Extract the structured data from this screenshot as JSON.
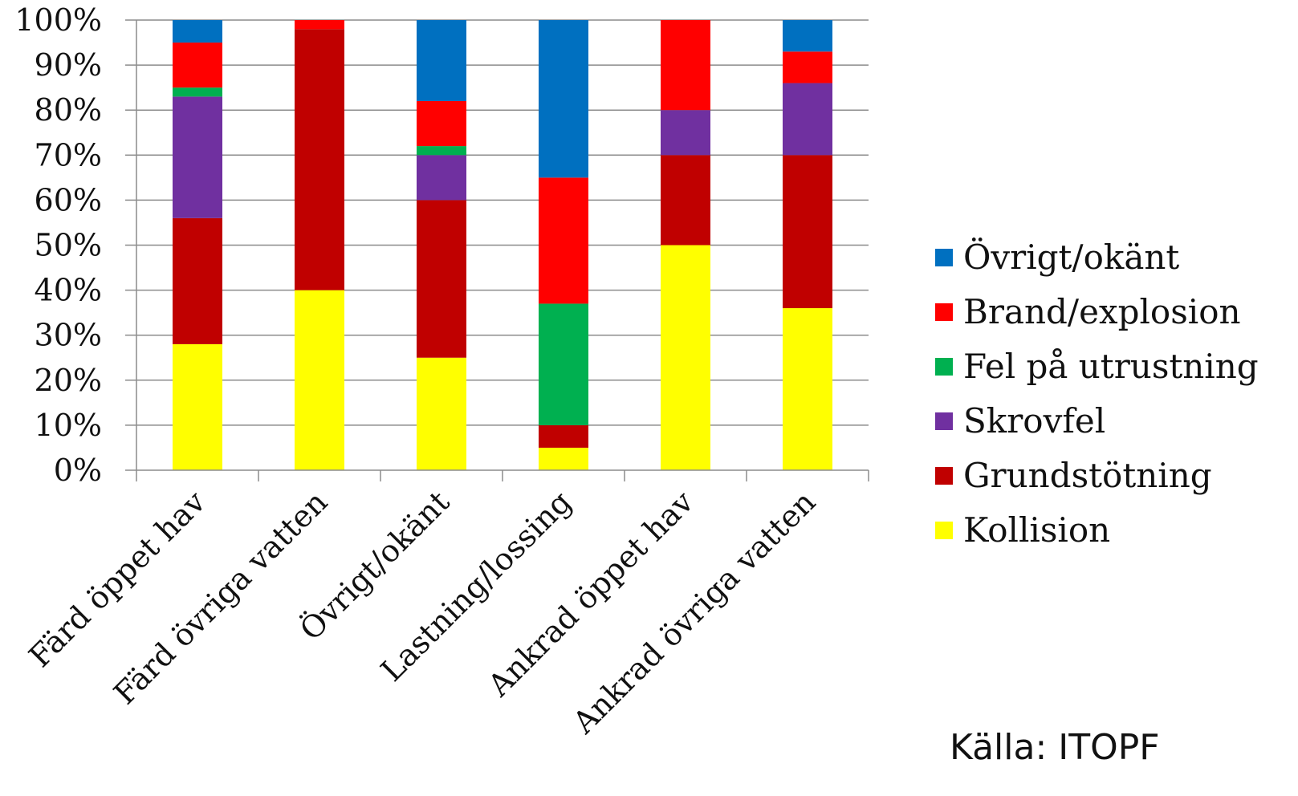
{
  "chart_data": {
    "type": "bar",
    "stacked": true,
    "normalized_percent": true,
    "categories": [
      "Färd öppet hav",
      "Färd övriga vatten",
      "Övrigt/okänt",
      "Lastning/lossing",
      "Ankrad öppet hav",
      "Ankrad övriga vatten"
    ],
    "series": [
      {
        "name": "Kollision",
        "color": "#ffff00",
        "values": [
          28,
          40,
          25,
          5,
          50,
          36
        ]
      },
      {
        "name": "Grundstötning",
        "color": "#c00000",
        "values": [
          28,
          58,
          35,
          5,
          20,
          34
        ]
      },
      {
        "name": "Skrovfel",
        "color": "#7030a0",
        "values": [
          27,
          0,
          10,
          0,
          10,
          16
        ]
      },
      {
        "name": "Fel på utrustning",
        "color": "#00b050",
        "values": [
          2,
          0,
          2,
          27,
          0,
          0
        ]
      },
      {
        "name": "Brand/explosion",
        "color": "#ff0000",
        "values": [
          10,
          2,
          10,
          28,
          20,
          7
        ]
      },
      {
        "name": "Övrigt/okänt",
        "color": "#0070c0",
        "values": [
          5,
          0,
          18,
          35,
          0,
          7
        ]
      }
    ],
    "ylim": [
      0,
      100
    ],
    "yticks": [
      "0%",
      "10%",
      "20%",
      "30%",
      "40%",
      "50%",
      "60%",
      "70%",
      "80%",
      "90%",
      "100%"
    ],
    "grid": true,
    "legend_position": "right",
    "legend_order": [
      "Övrigt/okänt",
      "Brand/explosion",
      "Fel på utrustning",
      "Skrovfel",
      "Grundstötning",
      "Kollision"
    ],
    "note": "Källa: ITOPF"
  }
}
